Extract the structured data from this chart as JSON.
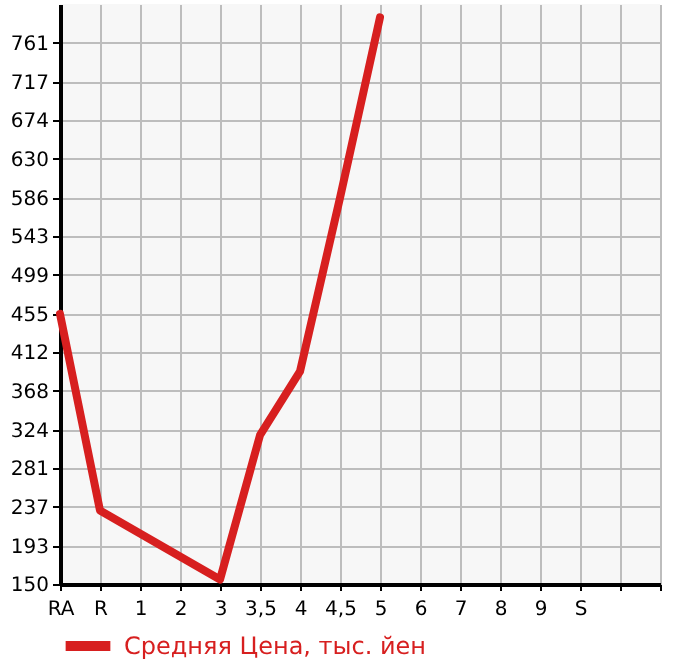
{
  "chart_data": {
    "type": "line",
    "categories": [
      "RA",
      "R",
      "1",
      "2",
      "3",
      "3,5",
      "4",
      "4,5",
      "5",
      "6",
      "7",
      "8",
      "9",
      "S",
      null,
      null
    ],
    "series": [
      {
        "name": "Средняя Цена, тыс. йен",
        "color": "#d71f1f",
        "values": [
          455,
          233,
          null,
          null,
          155,
          318,
          390,
          586,
          790,
          null,
          null,
          null,
          null,
          null,
          null,
          null
        ]
      }
    ],
    "ylim": [
      150,
      805
    ],
    "yticks": [
      150,
      193,
      237,
      281,
      324,
      368,
      412,
      455,
      499,
      543,
      586,
      630,
      674,
      717,
      761
    ],
    "grid": true,
    "legend": "bottom left"
  }
}
